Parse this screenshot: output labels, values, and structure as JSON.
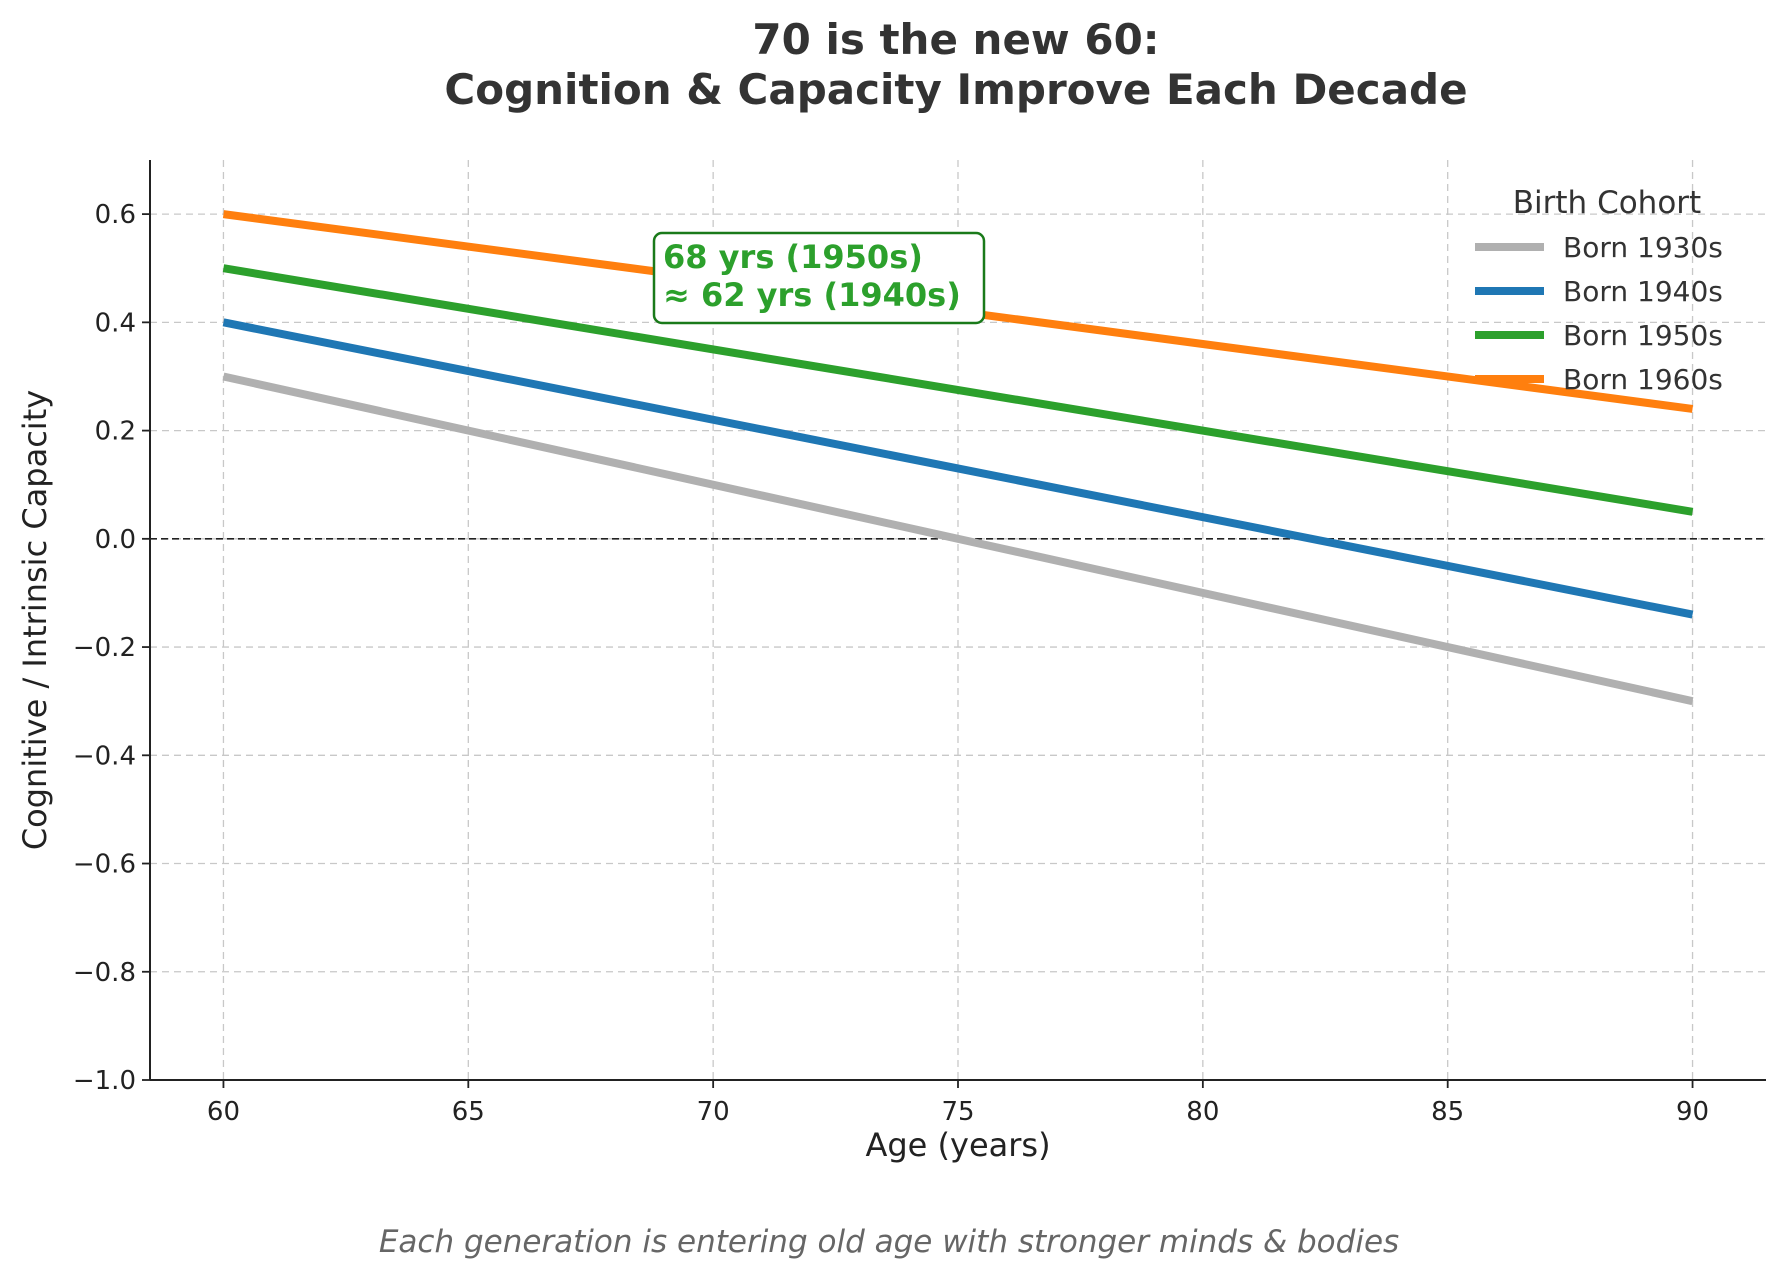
{
  "chart_data": {
    "type": "line",
    "title_lines": [
      "70 is the new 60:",
      "Cognition & Capacity Improve Each Decade"
    ],
    "xlabel": "Age (years)",
    "ylabel": "Cognitive / Intrinsic Capacity",
    "x": [
      60,
      90
    ],
    "xlim": [
      58.5,
      91.5
    ],
    "ylim": [
      -1.0,
      0.7
    ],
    "xticks": [
      60,
      65,
      70,
      75,
      80,
      85,
      90
    ],
    "xtick_labels": [
      "60",
      "65",
      "70",
      "75",
      "80",
      "85",
      "90"
    ],
    "yticks": [
      -1.0,
      -0.8,
      -0.6,
      -0.4,
      -0.2,
      0.0,
      0.2,
      0.4,
      0.6
    ],
    "ytick_labels": [
      "−1.0",
      "−0.8",
      "−0.6",
      "−0.4",
      "−0.2",
      "0.0",
      "0.2",
      "0.4",
      "0.6"
    ],
    "grid": true,
    "reference_line_y": 0.0,
    "legend": {
      "title": "Birth Cohort",
      "position": "top-right"
    },
    "series": [
      {
        "name": "Born 1930s",
        "color": "#b0b0b0",
        "values": [
          0.3,
          -0.3
        ]
      },
      {
        "name": "Born 1940s",
        "color": "#1f77b4",
        "values": [
          0.4,
          -0.14
        ]
      },
      {
        "name": "Born 1950s",
        "color": "#2ca02c",
        "values": [
          0.5,
          0.05
        ]
      },
      {
        "name": "Born 1960s",
        "color": "#ff7f0e",
        "values": [
          0.6,
          0.24
        ]
      }
    ],
    "annotation": {
      "lines": [
        "68 yrs (1950s)",
        "≈ 62 yrs (1940s)"
      ],
      "color": "#2ca02c",
      "border_color": "#1a7a1a"
    },
    "caption": "Each generation is entering old age with stronger minds & bodies"
  }
}
